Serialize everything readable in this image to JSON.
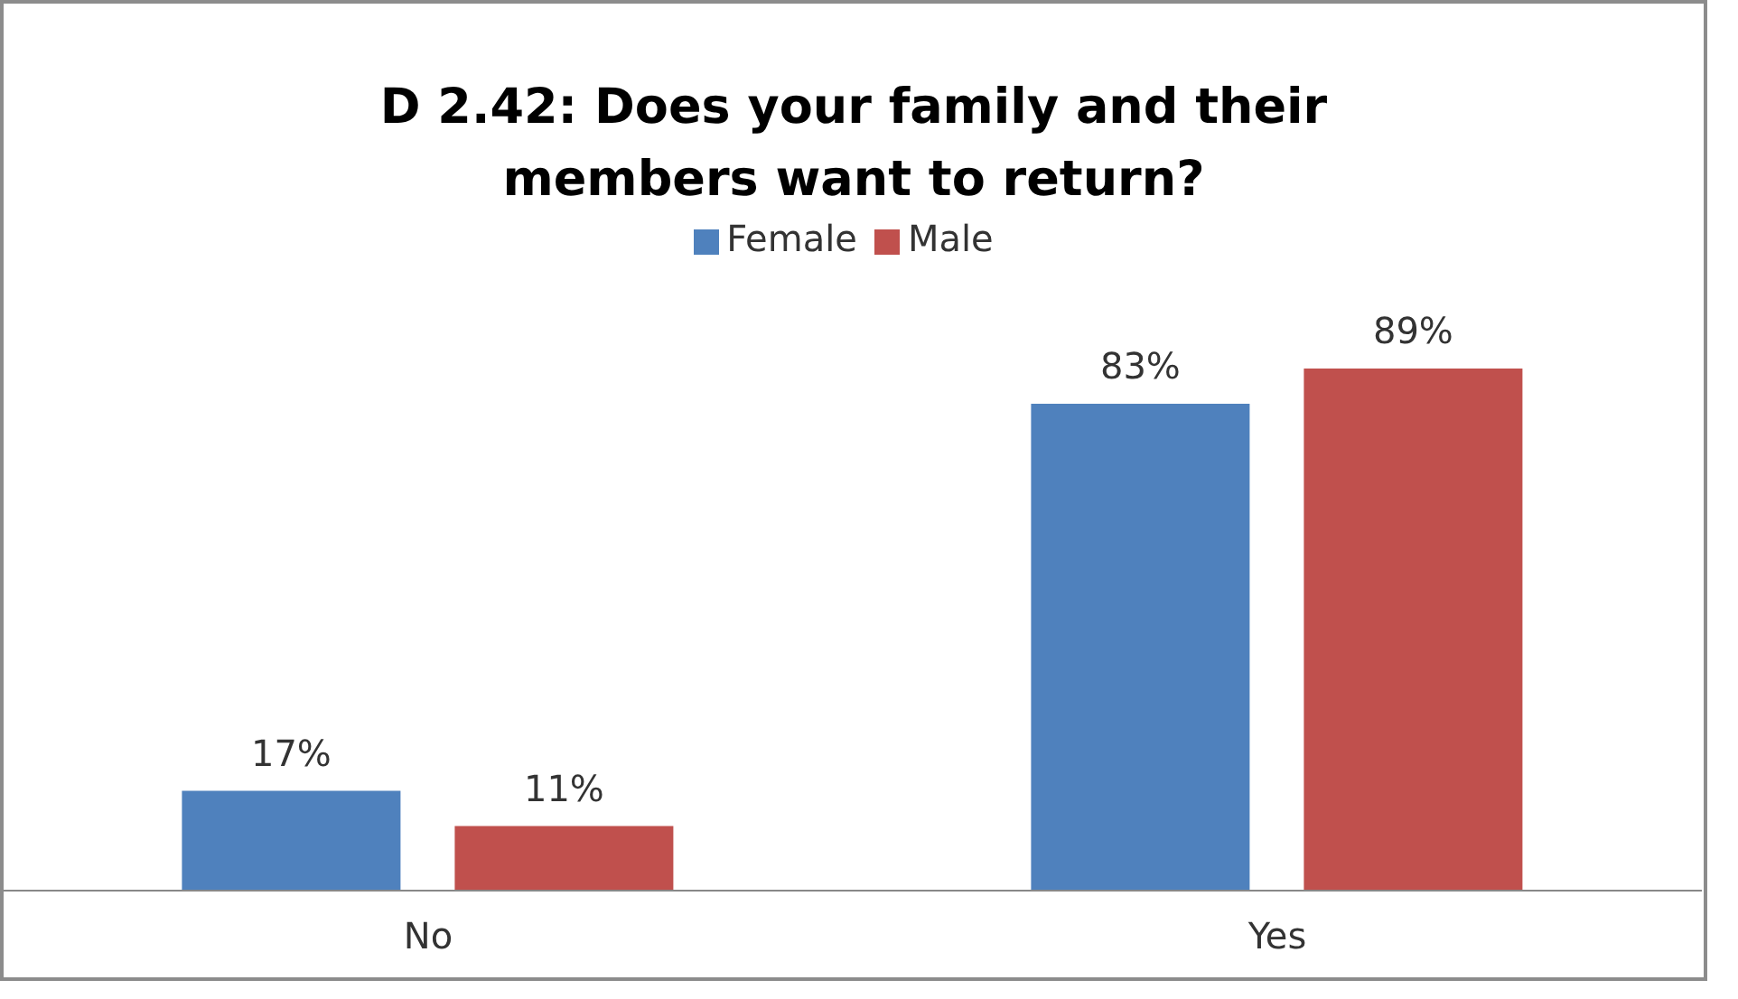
{
  "chart_data": {
    "type": "bar",
    "title": "D 2.42: Does your family and their members want to return?",
    "categories": [
      "No",
      "Yes"
    ],
    "series": [
      {
        "name": "Female",
        "color": "#4f81bd",
        "values": [
          17,
          83
        ],
        "value_labels": [
          "17%",
          "83%"
        ]
      },
      {
        "name": "Male",
        "color": "#c0504d",
        "values": [
          11,
          89
        ],
        "value_labels": [
          "11%",
          "89%"
        ]
      }
    ],
    "legend": "top",
    "grid": false
  }
}
